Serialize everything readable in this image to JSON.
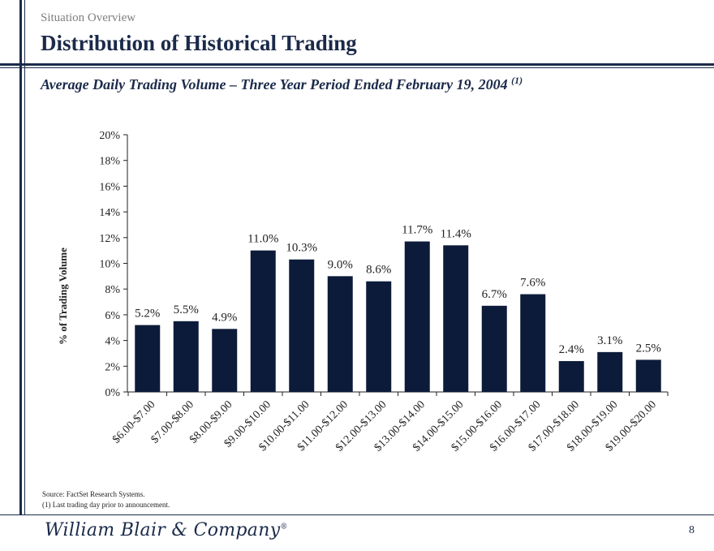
{
  "header": {
    "section": "Situation Overview",
    "title": "Distribution of Historical Trading"
  },
  "subtitle": {
    "text": "Average Daily Trading Volume – Three Year Period Ended February 19, 2004",
    "footnote_ref": "(1)"
  },
  "chart_data": {
    "type": "bar",
    "title": "",
    "ylabel": "% of Trading Volume",
    "xlabel": "",
    "ylim": [
      0,
      20
    ],
    "yticks": [
      0,
      2,
      4,
      6,
      8,
      10,
      12,
      14,
      16,
      18,
      20
    ],
    "ytick_labels": [
      "0%",
      "2%",
      "4%",
      "6%",
      "8%",
      "10%",
      "12%",
      "14%",
      "16%",
      "18%",
      "20%"
    ],
    "categories": [
      "$6.00-$7.00",
      "$7.00-$8.00",
      "$8.00-$9.00",
      "$9.00-$10.00",
      "$10.00-$11.00",
      "$11.00-$12.00",
      "$12.00-$13.00",
      "$13.00-$14.00",
      "$14.00-$15.00",
      "$15.00-$16.00",
      "$16.00-$17.00",
      "$17.00-$18.00",
      "$18.00-$19.00",
      "$19.00-$20.00"
    ],
    "values": [
      5.2,
      5.5,
      4.9,
      11.0,
      10.3,
      9.0,
      8.6,
      11.7,
      11.4,
      6.7,
      7.6,
      2.4,
      3.1,
      2.5
    ],
    "data_labels": [
      "5.2%",
      "5.5%",
      "4.9%",
      "11.0%",
      "10.3%",
      "9.0%",
      "8.6%",
      "11.7%",
      "11.4%",
      "6.7%",
      "7.6%",
      "2.4%",
      "3.1%",
      "2.5%"
    ],
    "bar_color": "#0d1b3a"
  },
  "footer": {
    "source": "Source: FactSet Research Systems.",
    "note": "(1) Last trading day prior to announcement.",
    "logo": "William Blair & Company",
    "logo_mark": "®",
    "page": "8"
  }
}
